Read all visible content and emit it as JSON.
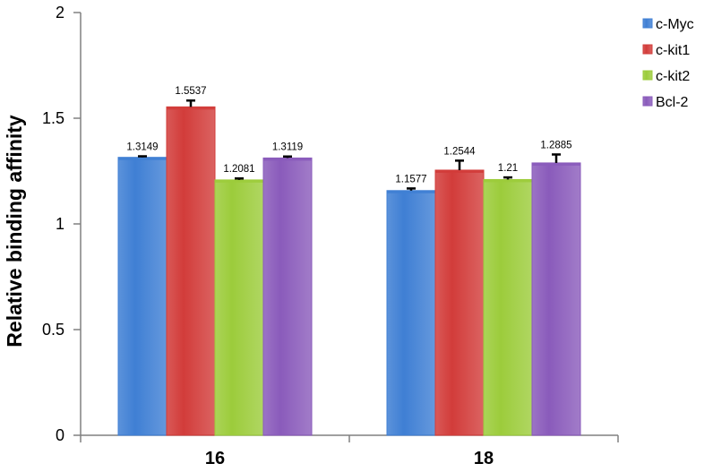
{
  "chart_data": {
    "type": "bar",
    "title": "",
    "xlabel": "",
    "ylabel": "Relative binding affinity",
    "categories": [
      "16",
      "18"
    ],
    "ylim": [
      0,
      2
    ],
    "yticks": [
      "0",
      "0.5",
      "1",
      "1.5",
      "2"
    ],
    "grid": false,
    "legend_position": "right",
    "series": [
      {
        "name": "c-Myc",
        "values": [
          1.3149,
          1.1577
        ],
        "labels": [
          "1.3149",
          "1.1577"
        ],
        "errors": [
          0.005,
          0.01
        ],
        "color": "#3f7fd4"
      },
      {
        "name": "c-kit1",
        "values": [
          1.5537,
          1.2544
        ],
        "labels": [
          "1.5537",
          "1.2544"
        ],
        "errors": [
          0.03,
          0.045
        ],
        "color": "#d23c3a"
      },
      {
        "name": "c-kit2",
        "values": [
          1.2081,
          1.21
        ],
        "labels": [
          "1.2081",
          "1.21"
        ],
        "errors": [
          0.007,
          0.01
        ],
        "color": "#9ccc3b"
      },
      {
        "name": "Bcl-2",
        "values": [
          1.3119,
          1.2885
        ],
        "labels": [
          "1.3119",
          "1.2885"
        ],
        "errors": [
          0.007,
          0.04
        ],
        "color": "#8a5bbb"
      }
    ]
  }
}
